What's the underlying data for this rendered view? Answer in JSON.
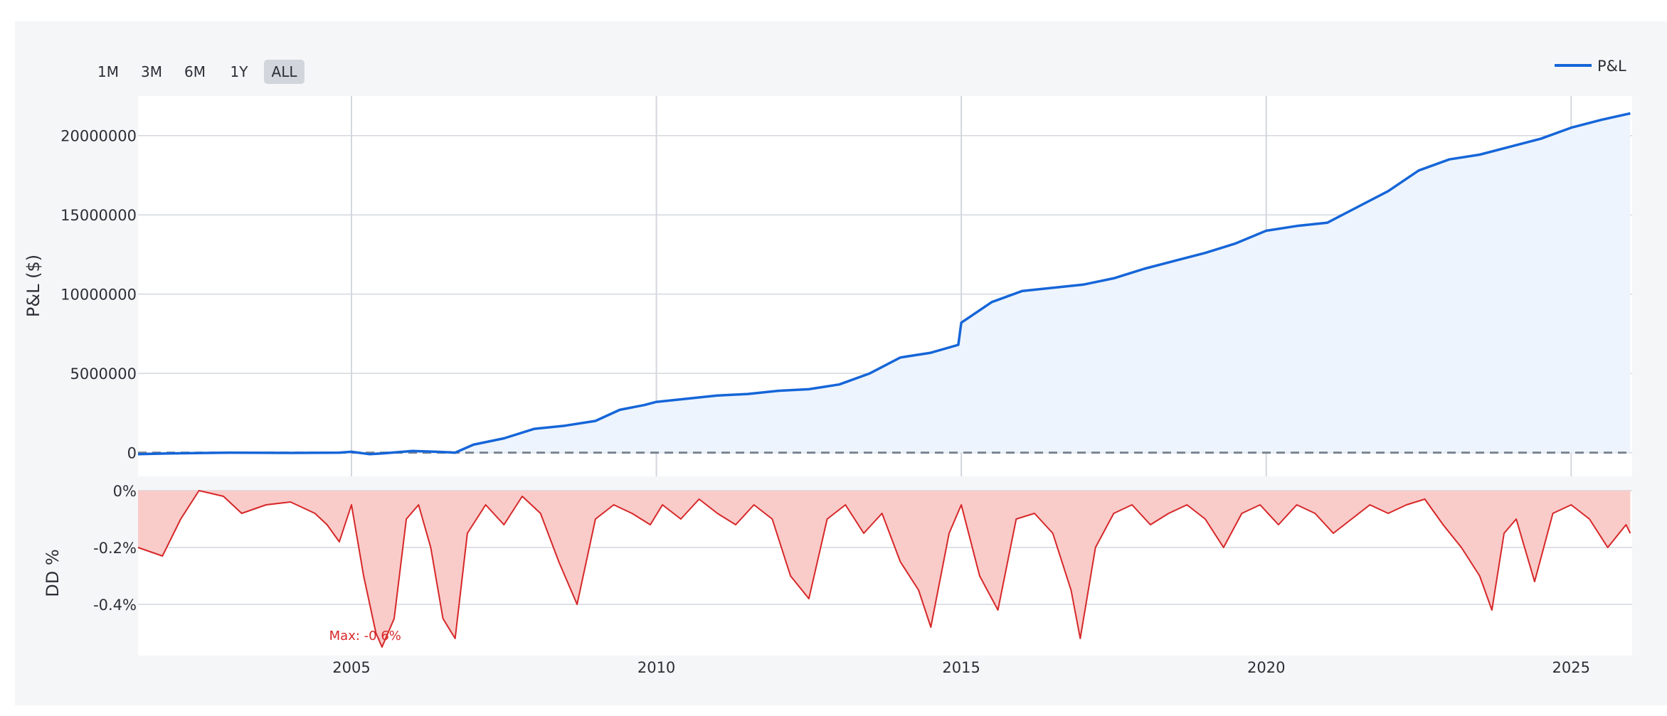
{
  "range_selector": {
    "buttons": [
      "1M",
      "3M",
      "6M",
      "1Y",
      "ALL"
    ],
    "active": "ALL"
  },
  "colors": {
    "pnl_line": "#1565d8",
    "pnl_fill": "#edf4fd",
    "zero_line": "#7a8593",
    "dd_line": "#d62728",
    "dd_fill": "#f9cbc9",
    "grid": "#d3d7dd",
    "panel_bg": "#f5f6f8",
    "plot_bg": "#ffffff"
  },
  "chart_data": [
    {
      "type": "area",
      "name": "pnl-chart",
      "ylabel": "P&L ($)",
      "xlim": [
        2001.5,
        2026.0
      ],
      "ylim": [
        -1500000,
        22500000
      ],
      "yticks": [
        0,
        5000000,
        10000000,
        15000000,
        20000000
      ],
      "ytick_labels": [
        "0",
        "5000000",
        "10000000",
        "15000000",
        "20000000"
      ],
      "xticks": [
        2005,
        2010,
        2015,
        2020,
        2025
      ],
      "grid": true,
      "legend": {
        "position": "top-right",
        "entries": [
          "P&L"
        ]
      },
      "reference_line": {
        "y": 0,
        "style": "dashed"
      },
      "series": [
        {
          "name": "P&L",
          "x": [
            2001.5,
            2002.0,
            2003.0,
            2004.0,
            2004.8,
            2005.0,
            2005.3,
            2005.5,
            2006.0,
            2006.4,
            2006.7,
            2007.0,
            2007.5,
            2008.0,
            2008.5,
            2009.0,
            2009.4,
            2009.8,
            2010.0,
            2010.5,
            2011.0,
            2011.5,
            2012.0,
            2012.5,
            2013.0,
            2013.5,
            2014.0,
            2014.5,
            2014.95,
            2015.0,
            2015.5,
            2016.0,
            2016.5,
            2017.0,
            2017.5,
            2018.0,
            2018.5,
            2019.0,
            2019.5,
            2020.0,
            2020.5,
            2021.0,
            2021.5,
            2022.0,
            2022.5,
            2023.0,
            2023.5,
            2024.0,
            2024.5,
            2025.0,
            2025.5,
            2025.97
          ],
          "y": [
            -100000,
            -50000,
            0,
            -20000,
            0,
            50000,
            -100000,
            -50000,
            100000,
            50000,
            0,
            500000,
            900000,
            1500000,
            1700000,
            2000000,
            2700000,
            3000000,
            3200000,
            3400000,
            3600000,
            3700000,
            3900000,
            4000000,
            4300000,
            5000000,
            6000000,
            6300000,
            6800000,
            8200000,
            9500000,
            10200000,
            10400000,
            10600000,
            11000000,
            11600000,
            12100000,
            12600000,
            13200000,
            14000000,
            14300000,
            14500000,
            15500000,
            16500000,
            17800000,
            18500000,
            18800000,
            19300000,
            19800000,
            20500000,
            21000000,
            21400000
          ]
        }
      ]
    },
    {
      "type": "area",
      "name": "drawdown-chart",
      "ylabel": "DD %",
      "xlim": [
        2001.5,
        2026.0
      ],
      "ylim": [
        -0.58,
        0.0
      ],
      "yticks": [
        0.0,
        -0.2,
        -0.4
      ],
      "ytick_labels": [
        "0%",
        "-0.2%",
        "-0.4%"
      ],
      "xticks": [
        2005,
        2010,
        2015,
        2020,
        2025
      ],
      "xtick_labels": [
        "2005",
        "2010",
        "2015",
        "2020",
        "2025"
      ],
      "grid": true,
      "annotation": {
        "text": "Max: -0.6%",
        "x": 2005.4,
        "y": -0.55
      },
      "series": [
        {
          "name": "Drawdown",
          "x": [
            2001.5,
            2001.9,
            2002.2,
            2002.5,
            2002.9,
            2003.2,
            2003.6,
            2004.0,
            2004.4,
            2004.6,
            2004.8,
            2005.0,
            2005.2,
            2005.4,
            2005.5,
            2005.7,
            2005.9,
            2006.1,
            2006.3,
            2006.5,
            2006.7,
            2006.9,
            2007.2,
            2007.5,
            2007.8,
            2008.1,
            2008.4,
            2008.7,
            2009.0,
            2009.3,
            2009.6,
            2009.9,
            2010.1,
            2010.4,
            2010.7,
            2011.0,
            2011.3,
            2011.6,
            2011.9,
            2012.2,
            2012.5,
            2012.8,
            2013.1,
            2013.4,
            2013.7,
            2014.0,
            2014.3,
            2014.5,
            2014.8,
            2015.0,
            2015.3,
            2015.6,
            2015.9,
            2016.2,
            2016.5,
            2016.8,
            2016.95,
            2017.2,
            2017.5,
            2017.8,
            2018.1,
            2018.4,
            2018.7,
            2019.0,
            2019.3,
            2019.6,
            2019.9,
            2020.2,
            2020.5,
            2020.8,
            2021.1,
            2021.4,
            2021.7,
            2022.0,
            2022.3,
            2022.6,
            2022.9,
            2023.2,
            2023.5,
            2023.7,
            2023.9,
            2024.1,
            2024.4,
            2024.7,
            2025.0,
            2025.3,
            2025.6,
            2025.9,
            2025.97
          ],
          "y": [
            -0.2,
            -0.23,
            -0.1,
            0.0,
            -0.02,
            -0.08,
            -0.05,
            -0.04,
            -0.08,
            -0.12,
            -0.18,
            -0.05,
            -0.3,
            -0.5,
            -0.55,
            -0.45,
            -0.1,
            -0.05,
            -0.2,
            -0.45,
            -0.52,
            -0.15,
            -0.05,
            -0.12,
            -0.02,
            -0.08,
            -0.25,
            -0.4,
            -0.1,
            -0.05,
            -0.08,
            -0.12,
            -0.05,
            -0.1,
            -0.03,
            -0.08,
            -0.12,
            -0.05,
            -0.1,
            -0.3,
            -0.38,
            -0.1,
            -0.05,
            -0.15,
            -0.08,
            -0.25,
            -0.35,
            -0.48,
            -0.15,
            -0.05,
            -0.3,
            -0.42,
            -0.1,
            -0.08,
            -0.15,
            -0.35,
            -0.52,
            -0.2,
            -0.08,
            -0.05,
            -0.12,
            -0.08,
            -0.05,
            -0.1,
            -0.2,
            -0.08,
            -0.05,
            -0.12,
            -0.05,
            -0.08,
            -0.15,
            -0.1,
            -0.05,
            -0.08,
            -0.05,
            -0.03,
            -0.12,
            -0.2,
            -0.3,
            -0.42,
            -0.15,
            -0.1,
            -0.32,
            -0.08,
            -0.05,
            -0.1,
            -0.2,
            -0.12,
            -0.15
          ]
        }
      ]
    }
  ]
}
